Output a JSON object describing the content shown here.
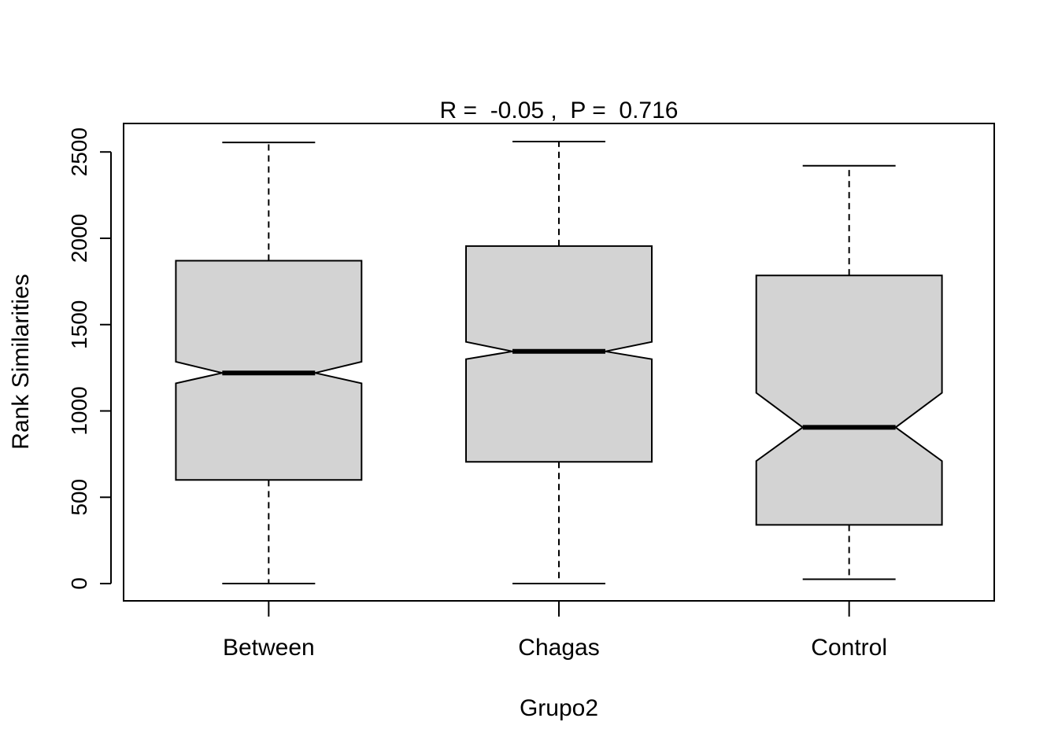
{
  "chart_data": {
    "type": "boxplot",
    "notched": true,
    "title": "R =  -0.05 ,  P =  0.716",
    "xlabel": "Grupo2",
    "ylabel": "Rank Similarities",
    "ylim": [
      -100,
      2665
    ],
    "yticks": [
      "0",
      "500",
      "1000",
      "1500",
      "2000",
      "2500"
    ],
    "ytick_values": [
      0,
      500,
      1000,
      1500,
      2000,
      2500
    ],
    "categories": [
      "Between",
      "Chagas",
      "Control"
    ],
    "series": [
      {
        "category": "Between",
        "whisker_low": 0,
        "q1": 600,
        "median": 1220,
        "q3": 1870,
        "whisker_high": 2555,
        "notch_low": 1160,
        "notch_high": 1285
      },
      {
        "category": "Chagas",
        "whisker_low": 0,
        "q1": 705,
        "median": 1345,
        "q3": 1955,
        "whisker_high": 2560,
        "notch_low": 1300,
        "notch_high": 1400
      },
      {
        "category": "Control",
        "whisker_low": 25,
        "q1": 340,
        "median": 905,
        "q3": 1785,
        "whisker_high": 2420,
        "notch_low": 710,
        "notch_high": 1105
      }
    ],
    "box_fill": "#d3d3d3",
    "line_color": "#000000",
    "grid": false,
    "legend": "none"
  }
}
